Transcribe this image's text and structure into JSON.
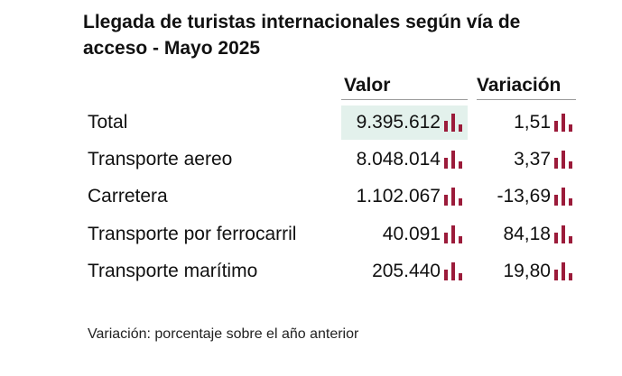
{
  "title": "Llegada de turistas internacionales según vía de acceso - Mayo 2025",
  "columns": {
    "valor": "Valor",
    "variacion": "Variación"
  },
  "rows": [
    {
      "label": "Total",
      "valor": "9.395.612",
      "variacion": "1,51"
    },
    {
      "label": "Transporte aereo",
      "valor": "8.048.014",
      "variacion": "3,37"
    },
    {
      "label": "Carretera",
      "valor": "1.102.067",
      "variacion": "-13,69"
    },
    {
      "label": "Transporte por ferrocarril",
      "valor": "40.091",
      "variacion": "84,18"
    },
    {
      "label": "Transporte marítimo",
      "valor": "205.440",
      "variacion": "19,80"
    }
  ],
  "footnote": "Variación: porcentaje sobre el año anterior",
  "icons": {
    "chart": "bar-chart-icon"
  },
  "colors": {
    "icon": "#9b1b3a",
    "highlight": "#e3f1ec"
  }
}
